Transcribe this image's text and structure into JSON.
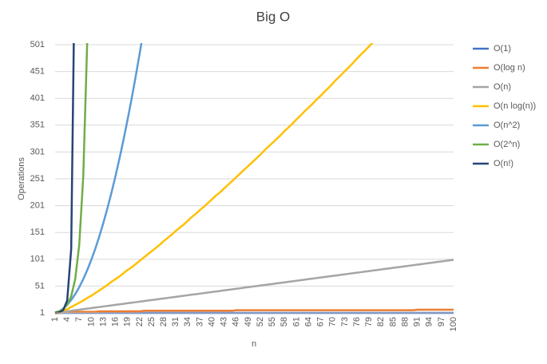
{
  "chart_data": {
    "type": "line",
    "title": "Big O",
    "x_label": "n",
    "y_label": "Operations",
    "ylim": [
      1,
      501
    ],
    "yticks": [
      1,
      51,
      101,
      151,
      201,
      251,
      301,
      351,
      401,
      451,
      501
    ],
    "grid": true,
    "legend": "right",
    "categories": [
      1,
      null,
      null,
      4,
      null,
      null,
      7,
      null,
      null,
      10,
      null,
      null,
      13,
      null,
      null,
      16,
      null,
      null,
      19,
      null,
      null,
      22,
      null,
      null,
      25,
      null,
      null,
      28,
      null,
      null,
      31,
      null,
      null,
      34,
      null,
      null,
      37,
      null,
      null,
      40,
      null,
      null,
      43,
      null,
      null,
      46,
      null,
      null,
      49,
      null,
      null,
      52,
      null,
      null,
      55,
      null,
      null,
      58,
      null,
      null,
      61,
      null,
      null,
      64,
      null,
      null,
      67,
      null,
      null,
      70,
      null,
      null,
      73,
      null,
      null,
      76,
      null,
      null,
      79,
      null,
      null,
      82,
      null,
      null,
      85,
      null,
      null,
      88,
      null,
      null,
      91,
      null,
      null,
      94,
      null,
      null,
      97,
      null,
      null,
      100
    ],
    "series": [
      {
        "name": "O(1)",
        "color": "#4472c4",
        "values": [
          1,
          1,
          1,
          1,
          1,
          1,
          1,
          1,
          1,
          1,
          1,
          1,
          1,
          1,
          1,
          1,
          1,
          1,
          1,
          1,
          1,
          1,
          1,
          1,
          1,
          1,
          1,
          1,
          1,
          1,
          1,
          1,
          1,
          1,
          1,
          1,
          1,
          1,
          1,
          1,
          1,
          1,
          1,
          1,
          1,
          1,
          1,
          1,
          1,
          1,
          1,
          1,
          1,
          1,
          1,
          1,
          1,
          1,
          1,
          1,
          1,
          1,
          1,
          1,
          1,
          1,
          1,
          1,
          1,
          1,
          1,
          1,
          1,
          1,
          1,
          1,
          1,
          1,
          1,
          1,
          1,
          1,
          1,
          1,
          1,
          1,
          1,
          1,
          1,
          1,
          1,
          1,
          1,
          1,
          1,
          1,
          1,
          1,
          1,
          1
        ]
      },
      {
        "name": "O(log n)",
        "color": "#ed7d31",
        "values": [
          0,
          1,
          2,
          2,
          2,
          3,
          3,
          3,
          3,
          3,
          3,
          4,
          4,
          4,
          4,
          4,
          4,
          4,
          4,
          4,
          4,
          4,
          5,
          5,
          5,
          5,
          5,
          5,
          5,
          5,
          5,
          5,
          5,
          5,
          5,
          5,
          5,
          5,
          5,
          5,
          5,
          5,
          5,
          5,
          5,
          6,
          6,
          6,
          6,
          6,
          6,
          6,
          6,
          6,
          6,
          6,
          6,
          6,
          6,
          6,
          6,
          6,
          6,
          6,
          6,
          6,
          6,
          6,
          6,
          6,
          6,
          6,
          6,
          6,
          6,
          6,
          6,
          6,
          6,
          6,
          6,
          6,
          6,
          6,
          6,
          6,
          6,
          6,
          6,
          6,
          7,
          7,
          7,
          7,
          7,
          7,
          7,
          7,
          7,
          7
        ]
      },
      {
        "name": "O(n)",
        "color": "#a5a5a5",
        "values": [
          1,
          2,
          3,
          4,
          5,
          6,
          7,
          8,
          9,
          10,
          11,
          12,
          13,
          14,
          15,
          16,
          17,
          18,
          19,
          20,
          21,
          22,
          23,
          24,
          25,
          26,
          27,
          28,
          29,
          30,
          31,
          32,
          33,
          34,
          35,
          36,
          37,
          38,
          39,
          40,
          41,
          42,
          43,
          44,
          45,
          46,
          47,
          48,
          49,
          50,
          51,
          52,
          53,
          54,
          55,
          56,
          57,
          58,
          59,
          60,
          61,
          62,
          63,
          64,
          65,
          66,
          67,
          68,
          69,
          70,
          71,
          72,
          73,
          74,
          75,
          76,
          77,
          78,
          79,
          80,
          81,
          82,
          83,
          84,
          85,
          86,
          87,
          88,
          89,
          90,
          91,
          92,
          93,
          94,
          95,
          96,
          97,
          98,
          99,
          100
        ]
      },
      {
        "name": "O(n log(n))",
        "color": "#ffc000",
        "values": [
          0,
          2,
          5,
          8,
          12,
          16,
          20,
          24,
          29,
          33,
          38,
          43,
          48,
          53,
          59,
          64,
          69,
          75,
          81,
          86,
          92,
          98,
          104,
          110,
          116,
          122,
          128,
          135,
          141,
          147,
          154,
          160,
          166,
          173,
          180,
          186,
          193,
          199,
          206,
          213,
          220,
          226,
          233,
          240,
          247,
          254,
          261,
          268,
          275,
          282,
          289,
          296,
          304,
          311,
          318,
          325,
          332,
          340,
          347,
          354,
          362,
          369,
          377,
          384,
          391,
          399,
          406,
          414,
          421,
          429,
          437,
          444,
          452,
          459,
          467,
          475,
          483,
          490,
          498,
          506,
          null,
          null,
          null,
          null,
          null,
          null,
          null,
          null,
          null,
          null,
          null,
          null,
          null,
          null,
          null,
          null,
          null,
          null,
          null,
          null
        ]
      },
      {
        "name": "O(n^2)",
        "color": "#5b9bd5",
        "values": [
          1,
          4,
          9,
          16,
          25,
          36,
          49,
          64,
          81,
          100,
          121,
          144,
          169,
          196,
          225,
          256,
          289,
          324,
          361,
          400,
          441,
          484,
          529,
          null,
          null,
          null,
          null,
          null,
          null,
          null,
          null,
          null,
          null,
          null,
          null,
          null,
          null,
          null,
          null,
          null,
          null,
          null,
          null,
          null,
          null,
          null,
          null,
          null,
          null,
          null,
          null,
          null,
          null,
          null,
          null,
          null,
          null,
          null,
          null,
          null,
          null,
          null,
          null,
          null,
          null,
          null,
          null,
          null,
          null,
          null,
          null,
          null,
          null,
          null,
          null,
          null,
          null,
          null,
          null,
          null,
          null,
          null,
          null,
          null,
          null,
          null,
          null,
          null,
          null,
          null,
          null,
          null,
          null,
          null,
          null,
          null,
          null,
          null,
          null,
          null
        ]
      },
      {
        "name": "O(2^n)",
        "color": "#70ad47",
        "values": [
          2,
          4,
          8,
          16,
          32,
          64,
          128,
          256,
          512,
          null,
          null,
          null,
          null,
          null,
          null,
          null,
          null,
          null,
          null,
          null,
          null,
          null,
          null,
          null,
          null,
          null,
          null,
          null,
          null,
          null,
          null,
          null,
          null,
          null,
          null,
          null,
          null,
          null,
          null,
          null,
          null,
          null,
          null,
          null,
          null,
          null,
          null,
          null,
          null,
          null,
          null,
          null,
          null,
          null,
          null,
          null,
          null,
          null,
          null,
          null,
          null,
          null,
          null,
          null,
          null,
          null,
          null,
          null,
          null,
          null,
          null,
          null,
          null,
          null,
          null,
          null,
          null,
          null,
          null,
          null,
          null,
          null,
          null,
          null,
          null,
          null,
          null,
          null,
          null,
          null,
          null,
          null,
          null,
          null,
          null,
          null,
          null,
          null,
          null,
          null
        ]
      },
      {
        "name": "O(n!)",
        "color": "#264478",
        "values": [
          1,
          2,
          6,
          24,
          120,
          720,
          null,
          null,
          null,
          null,
          null,
          null,
          null,
          null,
          null,
          null,
          null,
          null,
          null,
          null,
          null,
          null,
          null,
          null,
          null,
          null,
          null,
          null,
          null,
          null,
          null,
          null,
          null,
          null,
          null,
          null,
          null,
          null,
          null,
          null,
          null,
          null,
          null,
          null,
          null,
          null,
          null,
          null,
          null,
          null,
          null,
          null,
          null,
          null,
          null,
          null,
          null,
          null,
          null,
          null,
          null,
          null,
          null,
          null,
          null,
          null,
          null,
          null,
          null,
          null,
          null,
          null,
          null,
          null,
          null,
          null,
          null,
          null,
          null,
          null,
          null,
          null,
          null,
          null,
          null,
          null,
          null,
          null,
          null,
          null,
          null,
          null,
          null,
          null,
          null,
          null,
          null,
          null,
          null,
          null
        ]
      }
    ]
  }
}
